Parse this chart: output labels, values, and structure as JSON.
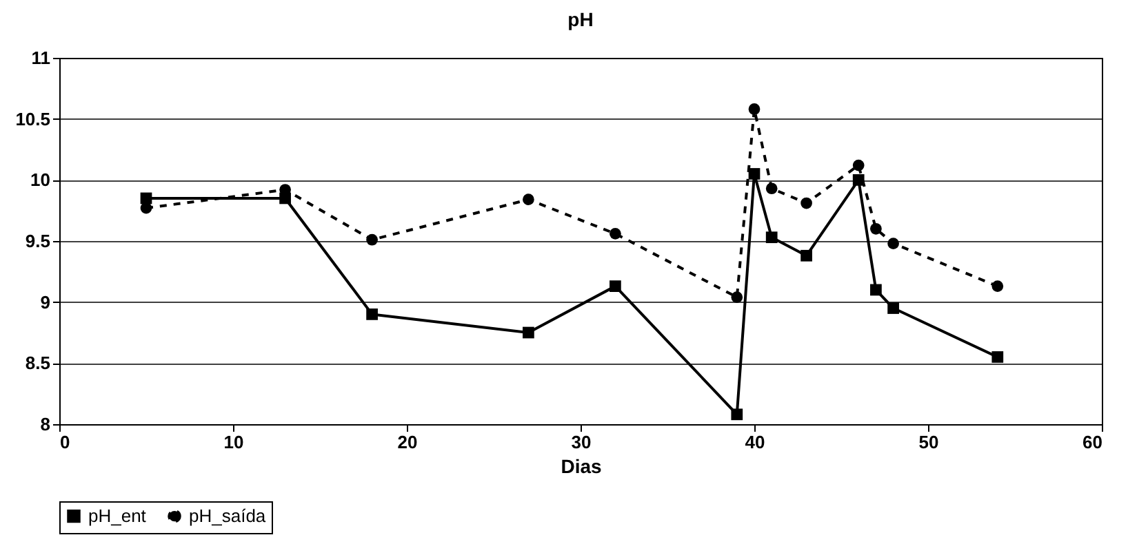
{
  "chart_data": {
    "type": "line",
    "title": "pH",
    "xlabel": "Dias",
    "x": [
      5,
      13,
      18,
      27,
      32,
      39,
      40,
      41,
      43,
      46,
      47,
      48,
      54
    ],
    "series": [
      {
        "name": "pH_ent",
        "color": "#000000",
        "marker": "square",
        "line_style": "solid",
        "values": [
          9.85,
          9.85,
          8.9,
          8.75,
          9.13,
          8.08,
          10.05,
          9.53,
          9.38,
          10.0,
          9.1,
          8.95,
          8.55
        ]
      },
      {
        "name": "pH_saída",
        "color": "#000000",
        "marker": "circle",
        "line_style": "dashed",
        "values": [
          9.77,
          9.92,
          9.51,
          9.84,
          9.56,
          9.04,
          10.58,
          9.93,
          9.81,
          10.12,
          9.6,
          9.48,
          9.13
        ]
      }
    ],
    "xlim": [
      0,
      60
    ],
    "xticks": [
      0,
      10,
      20,
      30,
      40,
      50,
      60
    ],
    "ylim": [
      8,
      11
    ],
    "yticks": [
      8,
      8.5,
      9,
      9.5,
      10,
      10.5,
      11
    ],
    "grid": "y",
    "legend": "bottom"
  }
}
